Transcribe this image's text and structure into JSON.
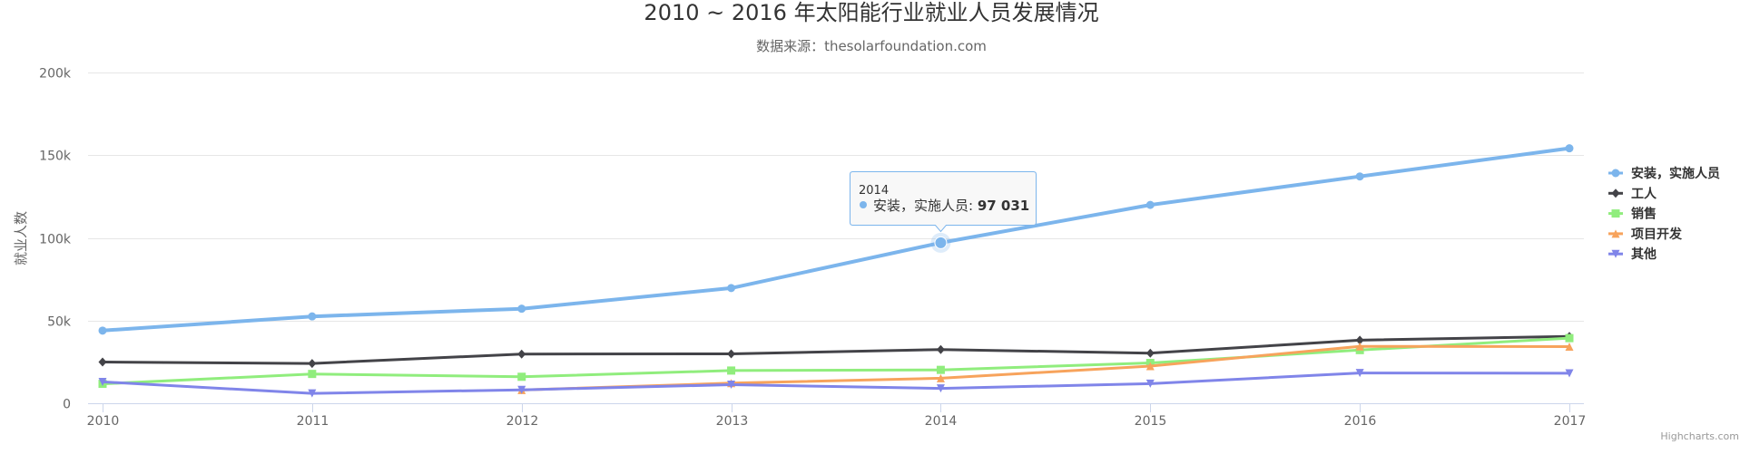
{
  "chart_data": {
    "type": "line",
    "title": "2010 ~ 2016 年太阳能行业就业人员发展情况",
    "subtitle": "数据来源：thesolarfoundation.com",
    "xlabel": "",
    "ylabel": "就业人数",
    "x": [
      2010,
      2011,
      2012,
      2013,
      2014,
      2015,
      2016,
      2017
    ],
    "categories": [
      "2010",
      "2011",
      "2012",
      "2013",
      "2014",
      "2015",
      "2016",
      "2017"
    ],
    "ylim": [
      0,
      200000
    ],
    "yticks": [
      "0",
      "50k",
      "100k",
      "150k",
      "200k"
    ],
    "grid": true,
    "legend_position": "right",
    "series": [
      {
        "name": "安装，实施人员",
        "color": "#7cb5ec",
        "marker": "circle",
        "values": [
          43934,
          52503,
          57177,
          69658,
          97031,
          119931,
          137133,
          154175
        ]
      },
      {
        "name": "工人",
        "color": "#434348",
        "marker": "diamond",
        "values": [
          24916,
          24064,
          29742,
          29851,
          32490,
          30282,
          38121,
          40434
        ]
      },
      {
        "name": "销售",
        "color": "#90ed7d",
        "marker": "square",
        "values": [
          11744,
          17722,
          16005,
          19771,
          20185,
          24377,
          32147,
          39387
        ]
      },
      {
        "name": "项目开发",
        "color": "#f7a35c",
        "marker": "triangle",
        "values": [
          null,
          null,
          7988,
          12169,
          15112,
          22452,
          34400,
          34227
        ]
      },
      {
        "name": "其他",
        "color": "#8085e9",
        "marker": "triangle-down",
        "values": [
          12908,
          5948,
          8105,
          11248,
          8989,
          11816,
          18274,
          18111
        ]
      }
    ],
    "tooltip": {
      "x": "2014",
      "series": "安装，实施人员",
      "label": "安装，实施人员: ",
      "value": "97 031"
    }
  },
  "credits": "Highcharts.com"
}
